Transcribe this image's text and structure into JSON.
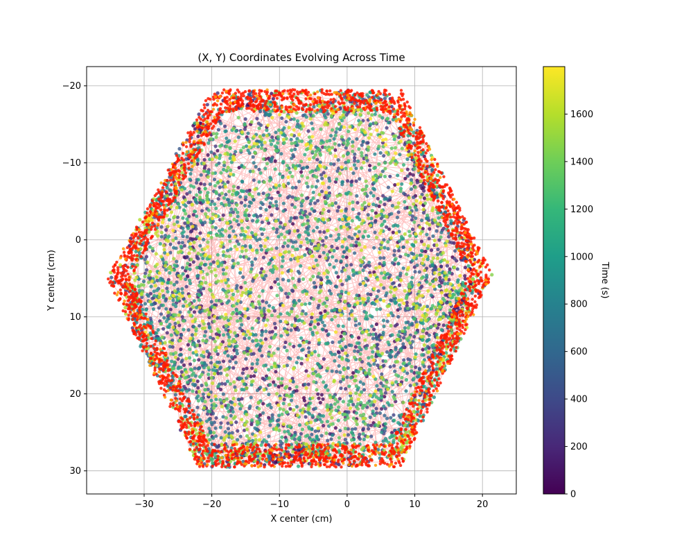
{
  "chart_data": {
    "type": "scatter",
    "title": "(X, Y) Coordinates Evolving Across Time",
    "xlabel": "X center (cm)",
    "ylabel": "Y center (cm)",
    "xlim": [
      -38.5,
      25
    ],
    "ylim": [
      -22.5,
      33
    ],
    "y_inverted": true,
    "grid": true,
    "x_ticks": [
      -30,
      -20,
      -10,
      0,
      10,
      20
    ],
    "y_ticks": [
      -20,
      -10,
      0,
      10,
      20,
      30
    ],
    "arena_shape": "hexagon",
    "arena_vertices": [
      [
        -20,
        -19.5
      ],
      [
        8,
        -19.5
      ],
      [
        21.5,
        4.5
      ],
      [
        8,
        29.5
      ],
      [
        -22,
        29.5
      ],
      [
        -35.5,
        5
      ]
    ],
    "point_color_encoding": "time",
    "trajectory_line_color": "#ff5555",
    "highlight_color": "#ff1a00",
    "colorbar": {
      "label": "Time (s)",
      "min": 0,
      "max": 1800,
      "ticks": [
        0,
        200,
        400,
        600,
        800,
        1000,
        1200,
        1400,
        1600
      ],
      "colormap": "viridis",
      "stops": [
        "#440154",
        "#482878",
        "#3e4a89",
        "#31688e",
        "#26828e",
        "#1f9e89",
        "#35b779",
        "#6ece58",
        "#b5de2b",
        "#fde725"
      ]
    }
  }
}
